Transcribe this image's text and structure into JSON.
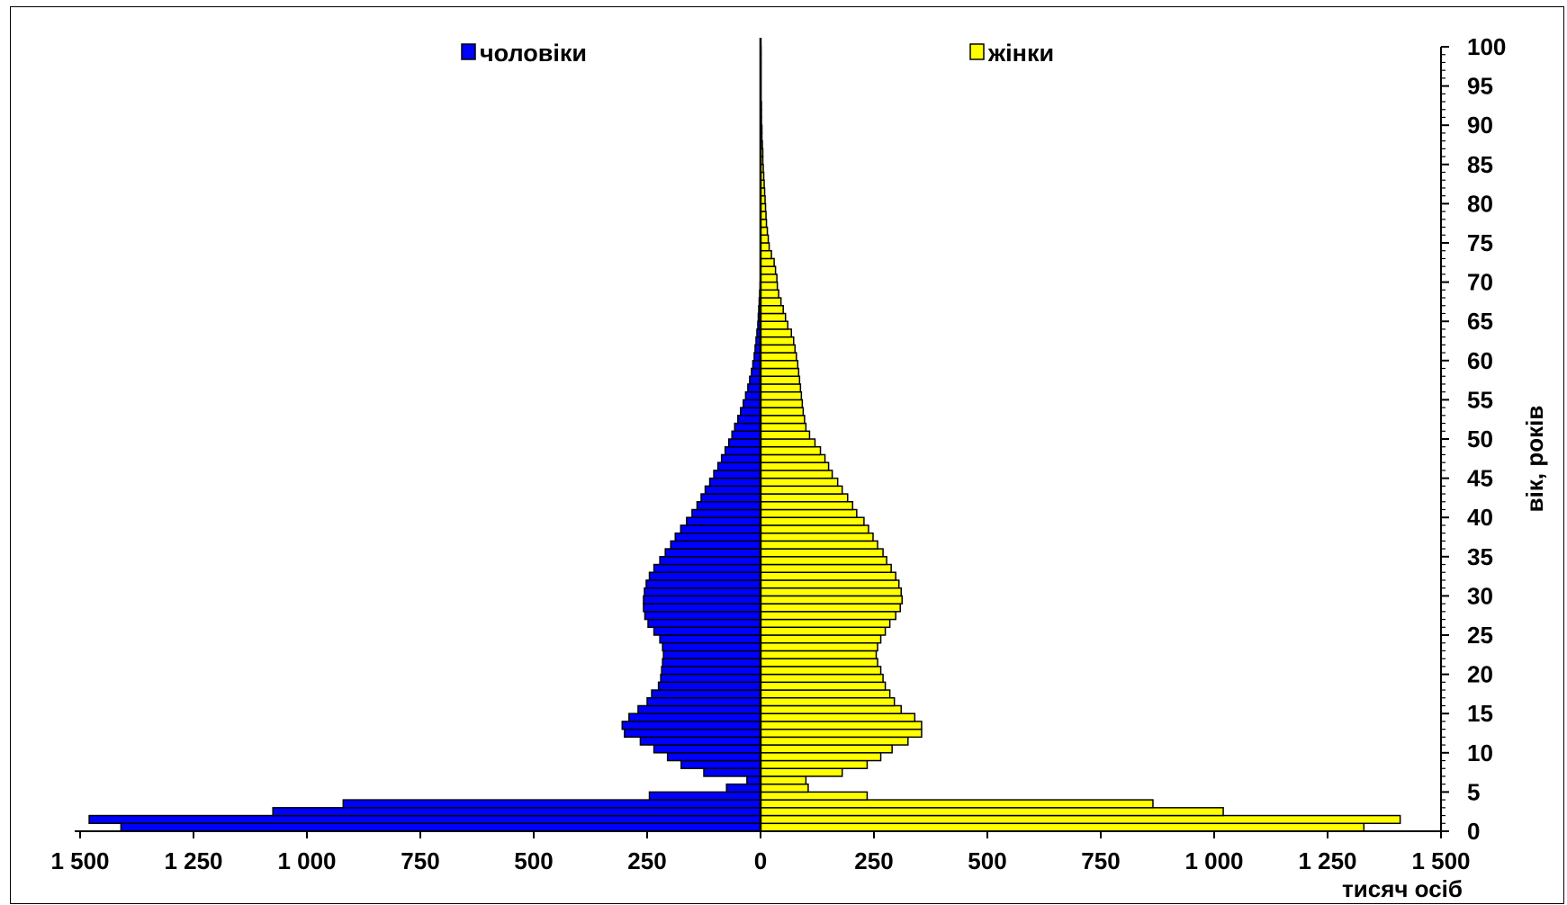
{
  "chart_data": {
    "type": "bar",
    "orientation": "horizontal",
    "title": "",
    "xlabel": "тисяч осіб",
    "ylabel": "вік,  років",
    "xlim": [
      -1500,
      1500
    ],
    "ylim": [
      0,
      100
    ],
    "x_tick_values": [
      -1500,
      -1250,
      -1000,
      -750,
      -500,
      -250,
      0,
      250,
      500,
      750,
      1000,
      1250,
      1500
    ],
    "x_tick_labels": [
      "1 500",
      "1 250",
      "1 000",
      "750",
      "500",
      "250",
      "0",
      "250",
      "500",
      "750",
      "1 000",
      "1 250",
      "1 500"
    ],
    "y_tick_values": [
      0,
      5,
      10,
      15,
      20,
      25,
      30,
      35,
      40,
      45,
      50,
      55,
      60,
      65,
      70,
      75,
      80,
      85,
      90,
      95,
      100
    ],
    "y_tick_labels": [
      "0",
      "5",
      "10",
      "15",
      "20",
      "25",
      "30",
      "35",
      "40",
      "45",
      "50",
      "55",
      "60",
      "65",
      "70",
      "75",
      "80",
      "85",
      "90",
      "95",
      "100"
    ],
    "grid": false,
    "legend_position": "top",
    "ages": [
      0,
      1,
      2,
      3,
      4,
      5,
      6,
      7,
      8,
      9,
      10,
      11,
      12,
      13,
      14,
      15,
      16,
      17,
      18,
      19,
      20,
      21,
      22,
      23,
      24,
      25,
      26,
      27,
      28,
      29,
      30,
      31,
      32,
      33,
      34,
      35,
      36,
      37,
      38,
      39,
      40,
      41,
      42,
      43,
      44,
      45,
      46,
      47,
      48,
      49,
      50,
      51,
      52,
      53,
      54,
      55,
      56,
      57,
      58,
      59,
      60,
      61,
      62,
      63,
      64,
      65,
      66,
      67,
      68,
      69,
      70,
      71,
      72,
      73,
      74,
      75,
      76,
      77,
      78,
      79,
      80,
      81,
      82,
      83,
      84,
      85,
      86,
      87,
      88,
      89,
      90,
      91,
      92,
      93,
      94,
      95,
      96,
      97,
      98,
      99
    ],
    "series": [
      {
        "name": "чоловіки",
        "color": "#0000FF",
        "side": "left",
        "values": [
          1410,
          1480,
          1075,
          920,
          245,
          75,
          30,
          125,
          175,
          205,
          235,
          265,
          300,
          305,
          290,
          270,
          250,
          240,
          225,
          220,
          218,
          216,
          214,
          216,
          222,
          235,
          248,
          255,
          258,
          258,
          256,
          252,
          245,
          235,
          222,
          210,
          198,
          188,
          176,
          163,
          151,
          140,
          131,
          122,
          112,
          103,
          94,
          86,
          78,
          70,
          63,
          57,
          50,
          44,
          38,
          33,
          28,
          24,
          20,
          17,
          14,
          12,
          10,
          8,
          6,
          5,
          4,
          3,
          2,
          1,
          0,
          0,
          0,
          0,
          0,
          0,
          0,
          0,
          0,
          0,
          0,
          0,
          0,
          0,
          0,
          0,
          0,
          0,
          0,
          0,
          0,
          0,
          0,
          0,
          0,
          0,
          0,
          0,
          0,
          0
        ]
      },
      {
        "name": "жінки",
        "color": "#FFFF00",
        "side": "right",
        "values": [
          1330,
          1410,
          1020,
          865,
          235,
          105,
          100,
          180,
          235,
          265,
          290,
          325,
          355,
          355,
          340,
          310,
          295,
          285,
          275,
          270,
          265,
          258,
          255,
          258,
          265,
          275,
          285,
          298,
          308,
          312,
          310,
          305,
          298,
          288,
          278,
          270,
          258,
          248,
          238,
          228,
          212,
          203,
          192,
          180,
          170,
          158,
          150,
          142,
          132,
          120,
          108,
          100,
          97,
          94,
          92,
          90,
          88,
          86,
          84,
          82,
          79,
          76,
          73,
          68,
          60,
          55,
          50,
          45,
          40,
          37,
          36,
          33,
          30,
          24,
          19,
          17,
          15,
          13,
          12,
          11,
          10,
          9,
          8,
          7,
          6,
          5,
          5,
          4,
          3,
          3,
          2,
          2,
          2,
          1,
          1,
          1,
          1,
          1,
          1,
          1
        ]
      }
    ]
  }
}
